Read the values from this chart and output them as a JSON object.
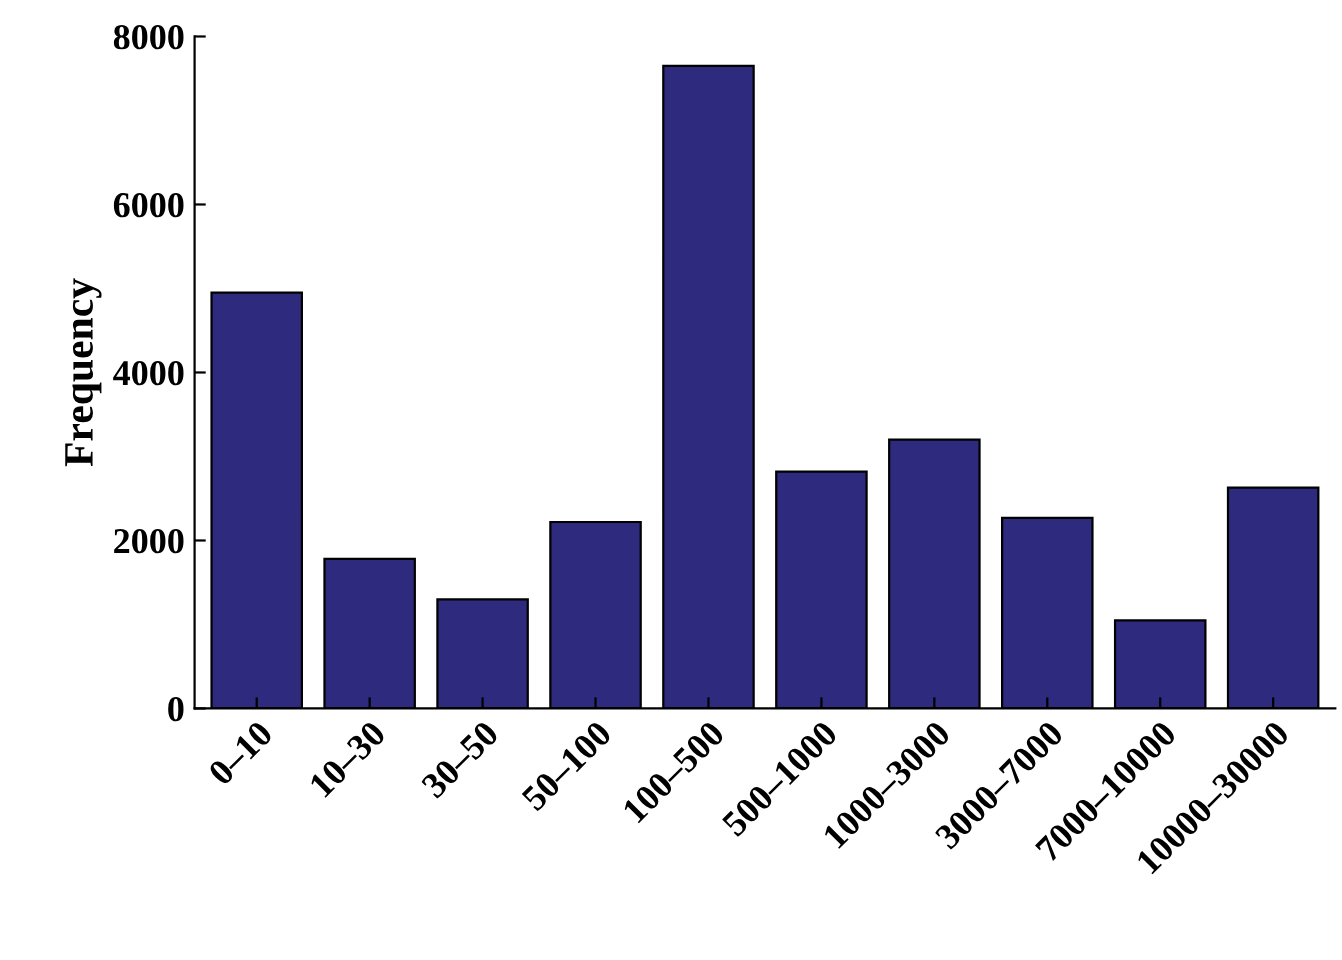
{
  "chart_data": {
    "type": "bar",
    "ylabel": "Frequency",
    "categories": [
      "0–10",
      "10–30",
      "30–50",
      "50–100",
      "100–500",
      "500–1000",
      "1000–3000",
      "3000–7000",
      "7000–10000",
      "10000–30000"
    ],
    "values": [
      4950,
      1780,
      1300,
      2220,
      7650,
      2820,
      3200,
      2270,
      1050,
      2630
    ],
    "color": "#2e2a7e",
    "ylim": [
      0,
      8000
    ],
    "yticks": [
      0,
      2000,
      4000,
      6000,
      8000
    ],
    "grid": false
  }
}
